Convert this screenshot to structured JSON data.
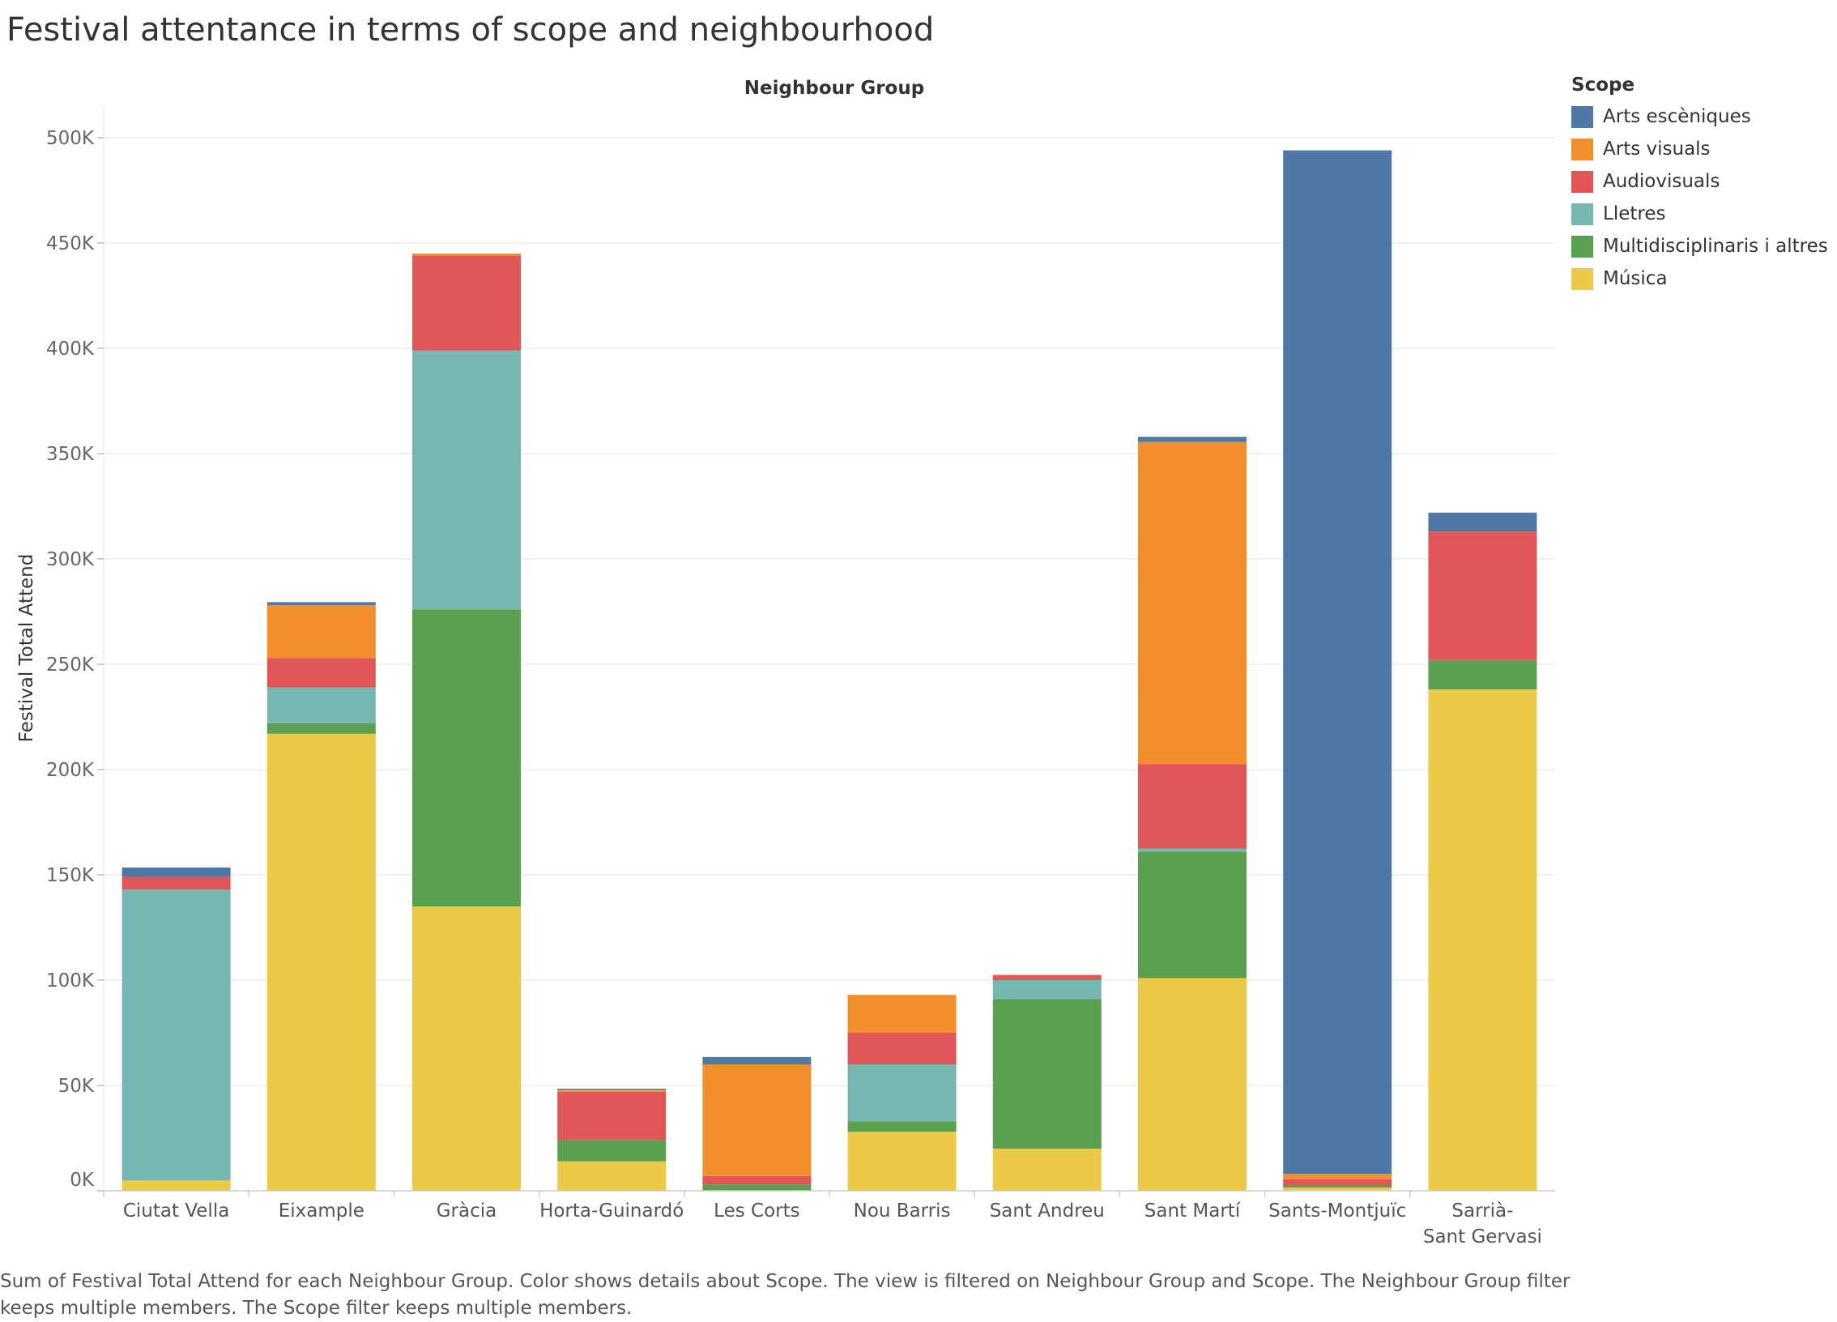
{
  "title": "Festival attentance in terms of scope and neighbourhood",
  "caption": "Sum of Festival Total Attend for each Neighbour Group.  Color shows details about Scope. The view is filtered on Neighbour Group and Scope. The Neighbour Group filter keeps multiple members. The Scope filter keeps multiple members.",
  "chart_data": {
    "type": "bar",
    "stacked": true,
    "header_label": "Neighbour Group",
    "ylabel": "Festival Total Attend",
    "ylim": [
      0,
      520000
    ],
    "yticks": [
      0,
      50000,
      100000,
      150000,
      200000,
      250000,
      300000,
      350000,
      400000,
      450000,
      500000
    ],
    "ytick_labels": [
      "0K",
      "50K",
      "100K",
      "150K",
      "200K",
      "250K",
      "300K",
      "350K",
      "400K",
      "450K",
      "500K"
    ],
    "grid": true,
    "legend_title": "Scope",
    "legend_position": "right",
    "categories": [
      "Ciutat Vella",
      "Eixample",
      "Gràcia",
      "Horta-Guinardó",
      "Les Corts",
      "Nou Barris",
      "Sant Andreu",
      "Sant Martí",
      "Sants-Montjuïc",
      "Sarrià-Sant Gervasi"
    ],
    "series": [
      {
        "name": "Música",
        "color": "#EDC948",
        "values": [
          5000,
          217000,
          135000,
          14000,
          0,
          28000,
          20000,
          101000,
          1500,
          238000
        ]
      },
      {
        "name": "Multidisciplinaris i altres",
        "color": "#59A14F",
        "values": [
          0,
          5000,
          141000,
          10000,
          3000,
          5000,
          71000,
          60000,
          1000,
          14000
        ]
      },
      {
        "name": "Lletres",
        "color": "#76B7B2",
        "values": [
          138000,
          17000,
          123000,
          0,
          0,
          27000,
          9000,
          1500,
          0,
          0
        ]
      },
      {
        "name": "Audiovisuals",
        "color": "#E15759",
        "values": [
          6000,
          14000,
          45000,
          23000,
          4000,
          15000,
          2500,
          40000,
          3000,
          61000
        ]
      },
      {
        "name": "Arts visuals",
        "color": "#F28E2B",
        "values": [
          0,
          25000,
          1000,
          1000,
          53000,
          18000,
          0,
          153000,
          2500,
          0
        ]
      },
      {
        "name": "Arts escèniques",
        "color": "#4E79A7",
        "values": [
          4500,
          1500,
          0,
          500,
          3500,
          0,
          0,
          2500,
          486000,
          9000
        ]
      }
    ]
  }
}
